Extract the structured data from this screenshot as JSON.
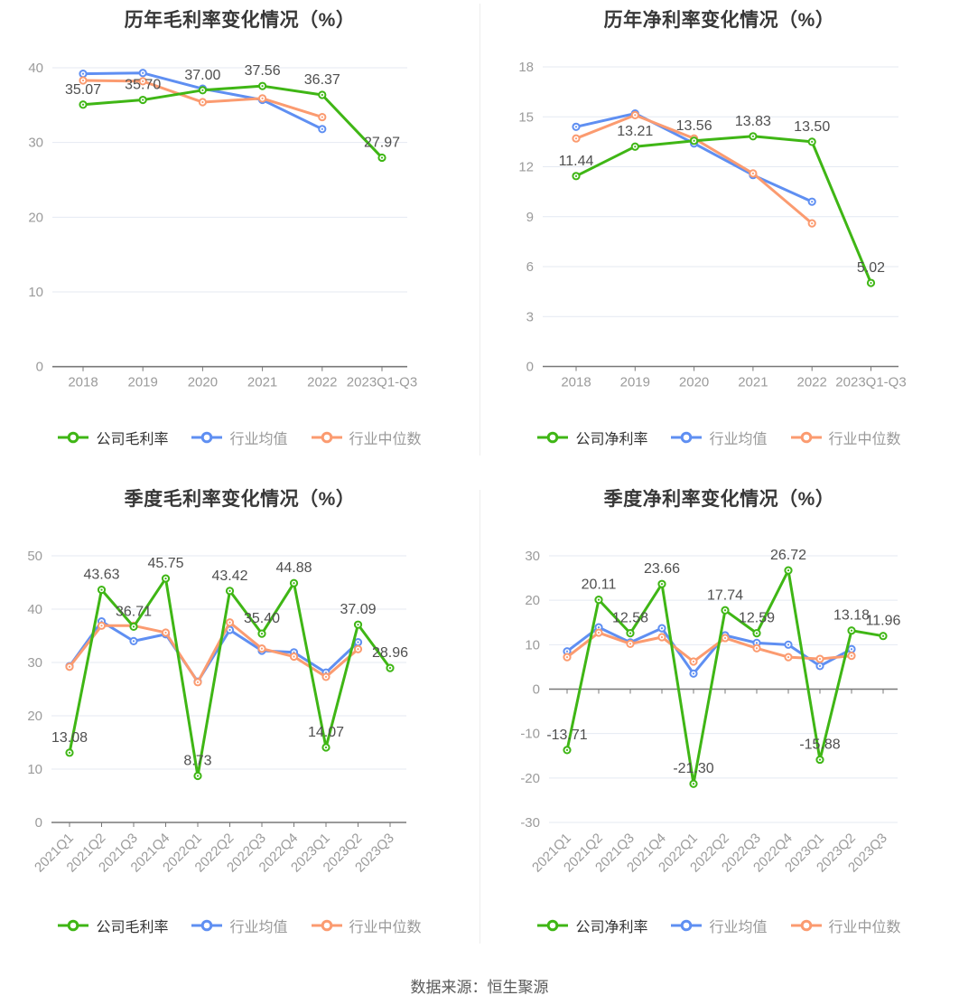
{
  "page": {
    "footer": "数据来源：恒生聚源"
  },
  "colors": {
    "company": "#3fb615",
    "industry_avg": "#5f8ff2",
    "industry_median": "#fb9b70",
    "title": "#383838",
    "tick": "#9b9b9b",
    "data_label": "#4f4f4f",
    "grid": "#e4e9f2",
    "axis": "#787878",
    "legend_active": "#333333",
    "legend_muted": "#999999",
    "footer": "#595959",
    "background": "#ffffff"
  },
  "chart_data": [
    {
      "type": "line",
      "title": "历年毛利率变化情况（%）",
      "categories": [
        "2018",
        "2019",
        "2020",
        "2021",
        "2022",
        "2023Q1-Q3"
      ],
      "y_axis": {
        "min": 0,
        "max": 40,
        "step": 10
      },
      "grid": true,
      "legend_position": "bottom",
      "series": [
        {
          "name": "公司毛利率",
          "role": "company",
          "labeled": true,
          "values": [
            35.07,
            35.7,
            37.0,
            37.56,
            36.37,
            27.97
          ]
        },
        {
          "name": "行业均值",
          "role": "industry_avg",
          "labeled": false,
          "values": [
            39.2,
            39.3,
            37.2,
            35.7,
            31.8,
            null
          ]
        },
        {
          "name": "行业中位数",
          "role": "industry_median",
          "labeled": false,
          "values": [
            38.3,
            38.2,
            35.4,
            35.9,
            33.4,
            null
          ]
        }
      ]
    },
    {
      "type": "line",
      "title": "历年净利率变化情况（%）",
      "categories": [
        "2018",
        "2019",
        "2020",
        "2021",
        "2022",
        "2023Q1-Q3"
      ],
      "y_axis": {
        "min": 0,
        "max": 18,
        "step": 3
      },
      "grid": true,
      "legend_position": "bottom",
      "series": [
        {
          "name": "公司净利率",
          "role": "company",
          "labeled": true,
          "values": [
            11.44,
            13.21,
            13.56,
            13.83,
            13.5,
            5.02
          ]
        },
        {
          "name": "行业均值",
          "role": "industry_avg",
          "labeled": false,
          "values": [
            14.4,
            15.2,
            13.4,
            11.5,
            9.9,
            null
          ]
        },
        {
          "name": "行业中位数",
          "role": "industry_median",
          "labeled": false,
          "values": [
            13.7,
            15.1,
            13.7,
            11.6,
            8.6,
            null
          ]
        }
      ]
    },
    {
      "type": "line",
      "title": "季度毛利率变化情况（%）",
      "categories": [
        "2021Q1",
        "2021Q2",
        "2021Q3",
        "2021Q4",
        "2022Q1",
        "2022Q2",
        "2022Q3",
        "2022Q4",
        "2023Q1",
        "2023Q2",
        "2023Q3"
      ],
      "y_axis": {
        "min": 0,
        "max": 50,
        "step": 10
      },
      "grid": true,
      "legend_position": "bottom",
      "series": [
        {
          "name": "公司毛利率",
          "role": "company",
          "labeled": true,
          "values": [
            13.08,
            43.63,
            36.71,
            45.75,
            8.73,
            43.42,
            35.4,
            44.88,
            14.07,
            37.09,
            28.96
          ]
        },
        {
          "name": "行业均值",
          "role": "industry_avg",
          "labeled": false,
          "values": [
            29.3,
            37.7,
            34.0,
            35.3,
            26.4,
            36.1,
            32.2,
            31.9,
            28.1,
            33.8,
            null
          ]
        },
        {
          "name": "行业中位数",
          "role": "industry_median",
          "labeled": false,
          "values": [
            29.2,
            36.9,
            36.9,
            35.6,
            26.3,
            37.5,
            32.6,
            31.1,
            27.3,
            32.5,
            null
          ]
        }
      ]
    },
    {
      "type": "line",
      "title": "季度净利率变化情况（%）",
      "categories": [
        "2021Q1",
        "2021Q2",
        "2021Q3",
        "2021Q4",
        "2022Q1",
        "2022Q2",
        "2022Q3",
        "2022Q4",
        "2023Q1",
        "2023Q2",
        "2023Q3"
      ],
      "y_axis": {
        "min": -30,
        "max": 30,
        "step": 10
      },
      "grid": true,
      "legend_position": "bottom",
      "series": [
        {
          "name": "公司净利率",
          "role": "company",
          "labeled": true,
          "values": [
            -13.71,
            20.11,
            12.58,
            23.66,
            -21.3,
            17.74,
            12.59,
            26.72,
            -15.88,
            13.18,
            11.96
          ]
        },
        {
          "name": "行业均值",
          "role": "industry_avg",
          "labeled": false,
          "values": [
            8.5,
            13.9,
            10.5,
            13.7,
            3.5,
            12.1,
            10.4,
            10.0,
            5.2,
            9.0,
            null
          ]
        },
        {
          "name": "行业中位数",
          "role": "industry_median",
          "labeled": false,
          "values": [
            7.2,
            12.7,
            10.2,
            11.7,
            6.2,
            11.5,
            9.2,
            7.2,
            6.8,
            7.5,
            null
          ]
        }
      ]
    }
  ]
}
